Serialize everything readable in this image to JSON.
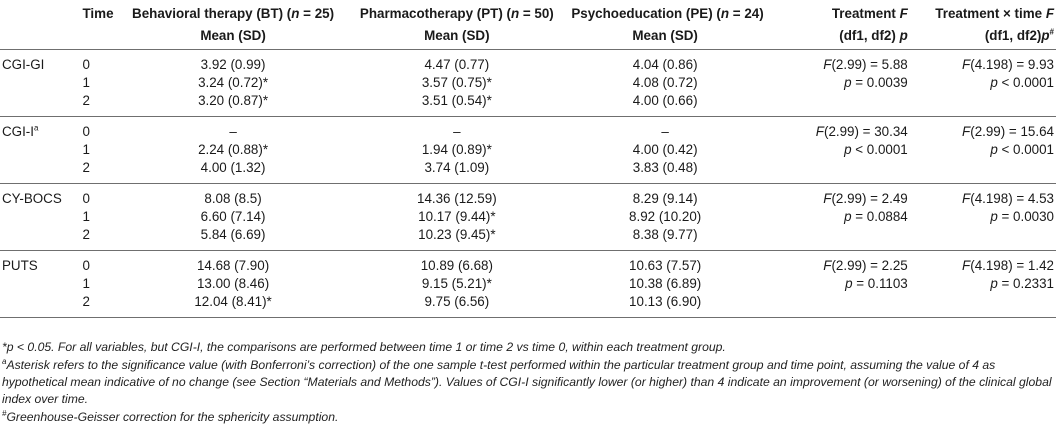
{
  "headers": {
    "col1": "Time",
    "col2_line1": "Behavioral therapy (BT) (n = 25)",
    "col2_line2": "Mean (SD)",
    "col3_line1": "Pharmacotherapy (PT) (n = 50)",
    "col3_line2": "Mean (SD)",
    "col4_line1": "Psychoeducation (PE) (n = 24)",
    "col4_line2": "Mean (SD)",
    "col5_line1": "Treatment F",
    "col5_line2": "(df1, df2) p",
    "col6_line1": "Treatment × time F",
    "col6_line2": "(df1, df2)p#"
  },
  "groups": [
    {
      "label": "CGI-GI",
      "rows": [
        {
          "time": "0",
          "bt": "3.92 (0.99)",
          "pt": "4.47 (0.77)",
          "pe": "4.04 (0.86)",
          "tr": "F(2.99) = 5.88",
          "tt": "F(4.198) = 9.93"
        },
        {
          "time": "1",
          "bt": "3.24 (0.72)*",
          "pt": "3.57 (0.75)*",
          "pe": "4.08 (0.72)",
          "tr": "p = 0.0039",
          "tt": "p < 0.0001"
        },
        {
          "time": "2",
          "bt": "3.20 (0.87)*",
          "pt": "3.51 (0.54)*",
          "pe": "4.00 (0.66)",
          "tr": "",
          "tt": ""
        }
      ]
    },
    {
      "label": "CGI-Ia",
      "rows": [
        {
          "time": "0",
          "bt": "–",
          "pt": "–",
          "pe": "–",
          "tr": "F(2.99) = 30.34",
          "tt": "F(2.99) = 15.64"
        },
        {
          "time": "1",
          "bt": "2.24 (0.88)*",
          "pt": "1.94 (0.89)*",
          "pe": "4.00 (0.42)",
          "tr": "p < 0.0001",
          "tt": "p < 0.0001"
        },
        {
          "time": "2",
          "bt": "4.00 (1.32)",
          "pt": "3.74 (1.09)",
          "pe": "3.83 (0.48)",
          "tr": "",
          "tt": ""
        }
      ]
    },
    {
      "label": "CY-BOCS",
      "rows": [
        {
          "time": "0",
          "bt": "8.08 (8.5)",
          "pt": "14.36 (12.59)",
          "pe": "8.29 (9.14)",
          "tr": "F(2.99) = 2.49",
          "tt": "F(4.198) = 4.53"
        },
        {
          "time": "1",
          "bt": "6.60 (7.14)",
          "pt": "10.17 (9.44)*",
          "pe": "8.92 (10.20)",
          "tr": "p = 0.0884",
          "tt": "p = 0.0030"
        },
        {
          "time": "2",
          "bt": "5.84 (6.69)",
          "pt": "10.23 (9.45)*",
          "pe": "8.38 (9.77)",
          "tr": "",
          "tt": ""
        }
      ]
    },
    {
      "label": "PUTS",
      "rows": [
        {
          "time": "0",
          "bt": "14.68 (7.90)",
          "pt": "10.89 (6.68)",
          "pe": "10.63 (7.57)",
          "tr": "F(2.99) = 2.25",
          "tt": "F(4.198) = 1.42"
        },
        {
          "time": "1",
          "bt": "13.00 (8.46)",
          "pt": "9.15 (5.21)*",
          "pe": "10.38 (6.89)",
          "tr": "p = 0.1103",
          "tt": "p = 0.2331"
        },
        {
          "time": "2",
          "bt": "12.04 (8.41)*",
          "pt": "9.75 (6.56)",
          "pe": "10.13 (6.90)",
          "tr": "",
          "tt": ""
        }
      ]
    }
  ],
  "footnotes": {
    "f1": "*p < 0.05. For all variables, but CGI-I, the comparisons are performed between time 1 or time 2 vs time 0, within each treatment group.",
    "f2": "aAsterisk refers to the significance value (with Bonferroni’s correction) of the one sample t-test performed within the particular treatment group and time point, assuming the value of 4 as hypothetical mean indicative of no change (see Section “Materials and Methods”). Values of CGI-I significantly lower (or higher) than 4 indicate an improvement (or worsening) of the clinical global index over time.",
    "f3": "#Greenhouse-Geisser correction for the sphericity assumption."
  }
}
